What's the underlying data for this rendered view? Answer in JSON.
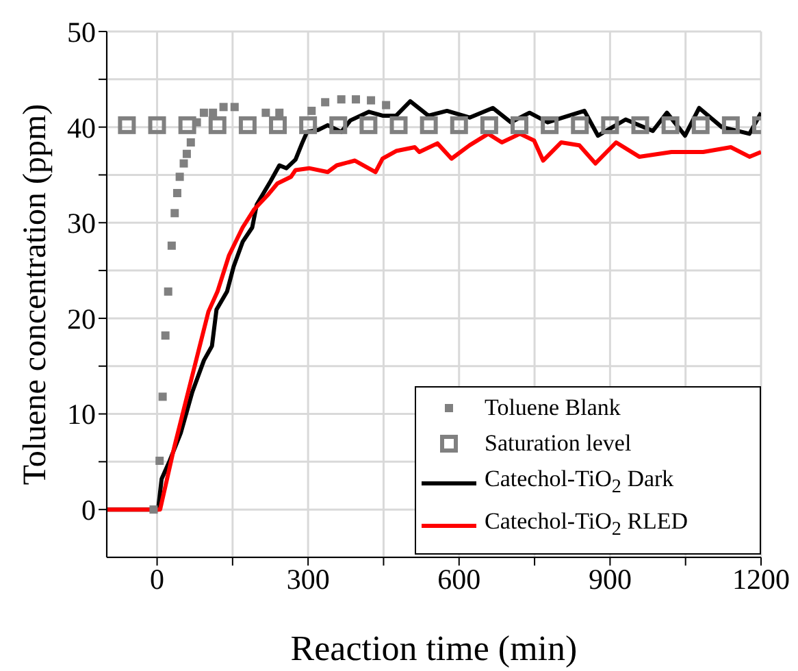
{
  "chart_data": {
    "type": "line",
    "xlabel": "Reaction time (min)",
    "ylabel": "Toluene concentration (ppm)",
    "xlim": [
      -100,
      1200
    ],
    "ylim": [
      -5,
      50
    ],
    "xticks": [
      0,
      {
        "value": 150,
        "label": null
      },
      300,
      {
        "value": 450,
        "label": null
      },
      600,
      {
        "value": 750,
        "label": null
      },
      900,
      {
        "value": 1050,
        "label": null
      },
      1200
    ],
    "yticks": [
      0,
      {
        "value": 5,
        "label": null
      },
      10,
      {
        "value": 15,
        "label": null
      },
      20,
      {
        "value": 25,
        "label": null
      },
      30,
      {
        "value": 35,
        "label": null
      },
      40,
      {
        "value": 45,
        "label": null
      },
      50
    ],
    "grid": true,
    "legend": "bottom right",
    "series": [
      {
        "name": "Toluene Blank",
        "type": "scatter",
        "marker": "square",
        "color": "#808080",
        "x": [
          -7,
          5,
          11,
          16.5,
          22,
          29,
          35,
          40,
          45,
          53,
          59,
          67,
          79,
          93,
          111,
          132,
          154,
          216,
          243,
          307,
          334,
          366,
          395,
          425,
          455
        ],
        "values": [
          0,
          5.1,
          11.8,
          18.2,
          22.8,
          27.6,
          31,
          33.1,
          34.8,
          36.2,
          37.2,
          38.4,
          40.5,
          41.5,
          41.5,
          42.1,
          42.1,
          41.5,
          41.5,
          41.7,
          42.6,
          42.9,
          42.9,
          42.8,
          42.3
        ]
      },
      {
        "name": "Saturation level",
        "type": "scatter",
        "marker": "square_open",
        "color": "#808080",
        "x": [
          -60,
          0,
          60,
          120,
          180,
          240,
          300,
          360,
          420,
          480,
          540,
          600,
          660,
          720,
          780,
          840,
          900,
          960,
          1020,
          1080,
          1140,
          1200
        ],
        "values": [
          40.2,
          40.2,
          40.2,
          40.2,
          40.2,
          40.2,
          40.2,
          40.2,
          40.2,
          40.2,
          40.2,
          40.2,
          40.2,
          40.2,
          40.2,
          40.2,
          40.2,
          40.2,
          40.2,
          40.2,
          40.2,
          40.2
        ]
      },
      {
        "name": "Catechol-TiO$_{2}$ Dark",
        "color": "#000000",
        "x": [
          -100,
          2,
          9,
          25,
          47,
          70,
          93,
          109,
          118,
          139,
          152,
          170,
          189,
          198,
          225,
          243,
          257,
          275,
          288,
          298,
          320,
          339,
          366,
          384,
          421,
          448,
          475,
          503,
          539,
          576,
          621,
          667,
          703,
          740,
          776,
          849,
          876,
          931,
          985,
          1013,
          1049,
          1077,
          1122,
          1177,
          1200
        ],
        "values": [
          0,
          0,
          3.2,
          5.1,
          8,
          12.3,
          15.6,
          17.1,
          20.9,
          22.8,
          25.4,
          28,
          29.5,
          31.9,
          34.3,
          36,
          35.7,
          36.6,
          38.3,
          39.5,
          39.7,
          40.2,
          39.5,
          40.7,
          41.6,
          41.2,
          41.2,
          42.7,
          41.2,
          41.7,
          41,
          42,
          40.5,
          41.5,
          40.5,
          41.7,
          39.1,
          40.8,
          39.6,
          41.5,
          39.1,
          42,
          40,
          39.3,
          41.5
        ]
      },
      {
        "name": "Catechol-TiO$_{2}$ RLED",
        "color": "#ff0000",
        "x": [
          -100,
          6,
          34,
          66,
          102,
          120,
          143,
          170,
          193,
          220,
          239,
          266,
          275,
          302,
          339,
          357,
          393,
          434,
          448,
          475,
          512,
          521,
          557,
          585,
          621,
          658,
          685,
          721,
          749,
          767,
          803,
          839,
          871,
          912,
          958,
          1022,
          1085,
          1140,
          1177,
          1200
        ],
        "values": [
          0,
          0,
          6.5,
          13.2,
          20.7,
          22.8,
          26.6,
          29.5,
          31.4,
          32.9,
          34.1,
          34.8,
          35.5,
          35.7,
          35.3,
          36,
          36.5,
          35.3,
          36.7,
          37.5,
          37.9,
          37.4,
          38.3,
          36.7,
          38.1,
          39.3,
          38.4,
          39.3,
          38.6,
          36.5,
          38.4,
          38.1,
          36.2,
          38.4,
          36.9,
          37.4,
          37.4,
          37.9,
          36.9,
          37.4
        ]
      }
    ]
  }
}
